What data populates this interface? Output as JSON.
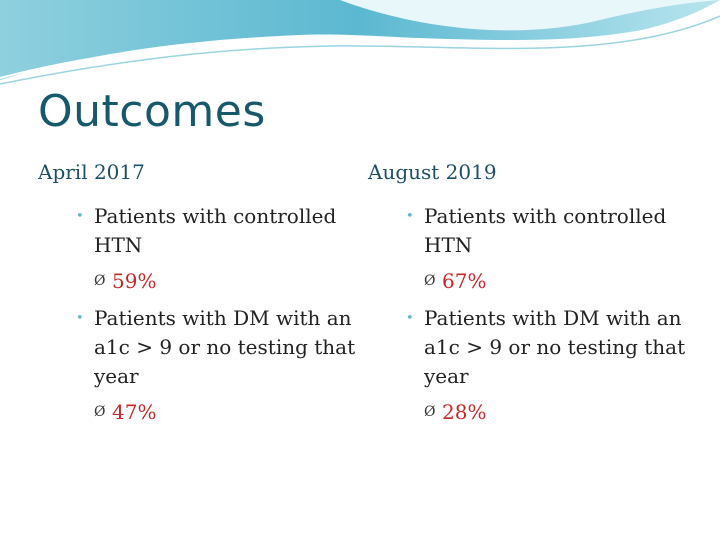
{
  "slide": {
    "title": "Outcomes",
    "columns": [
      {
        "heading": "April 2017",
        "items": [
          {
            "text": "Patients with controlled HTN",
            "value": "59%"
          },
          {
            "text": "Patients with DM with an a1c > 9 or no testing that year",
            "value": "47%"
          }
        ]
      },
      {
        "heading": "August 2019",
        "items": [
          {
            "text": "Patients with controlled HTN",
            "value": "67%"
          },
          {
            "text": "Patients with DM with an a1c > 9 or no testing that year",
            "value": "28%"
          }
        ]
      }
    ]
  },
  "icons": {
    "bullet": "•",
    "arrow": "Ø"
  },
  "colors": {
    "title": "#17586b",
    "heading": "#1d4f69",
    "value": "#c62828",
    "accent": "#6ab7c8"
  }
}
